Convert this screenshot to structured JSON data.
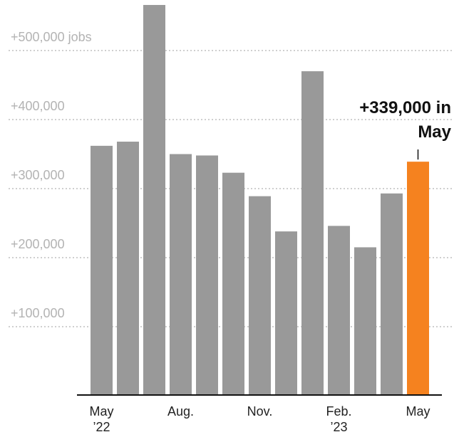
{
  "chart_data": {
    "type": "bar",
    "categories": [
      "May ’22",
      null,
      null,
      "Aug.",
      null,
      null,
      "Nov.",
      null,
      null,
      "Feb. ’23",
      null,
      null,
      "May"
    ],
    "values": [
      362000,
      368000,
      566000,
      350000,
      348000,
      323000,
      289000,
      238000,
      470000,
      246000,
      215000,
      293000,
      339000
    ],
    "colors": [
      "#999999",
      "#999999",
      "#999999",
      "#999999",
      "#999999",
      "#999999",
      "#999999",
      "#999999",
      "#999999",
      "#999999",
      "#999999",
      "#999999",
      "#f5821f"
    ],
    "ylim": [
      0,
      570000
    ],
    "yticks": [
      {
        "value": 100000,
        "label": "+100,000"
      },
      {
        "value": 200000,
        "label": "+200,000"
      },
      {
        "value": 300000,
        "label": "+300,000"
      },
      {
        "value": 400000,
        "label": "+400,000"
      },
      {
        "value": 500000,
        "label": "+500,000 jobs"
      }
    ],
    "grid": true,
    "annotation": "+339,000 in May"
  }
}
